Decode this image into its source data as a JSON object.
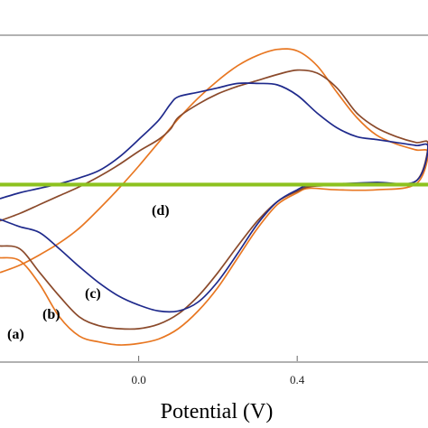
{
  "chart_data": {
    "type": "line",
    "title": "",
    "xlabel": "Potential (V)",
    "ylabel": "",
    "xlim": [
      -0.35,
      0.73
    ],
    "ylim": [
      -1.2,
      1.0
    ],
    "x_ticks": [
      0.0,
      0.4
    ],
    "x_tick_labels": [
      "0.0",
      "0.4"
    ],
    "grid": false,
    "legend": "none",
    "series": [
      {
        "label": "(a)",
        "color": "#E87722",
        "x": [
          -0.35,
          -0.3,
          -0.25,
          -0.2,
          -0.15,
          -0.1,
          -0.05,
          0.0,
          0.05,
          0.1,
          0.15,
          0.2,
          0.25,
          0.3,
          0.35,
          0.4,
          0.45,
          0.5,
          0.55,
          0.6,
          0.65,
          0.7,
          0.73,
          0.7,
          0.6,
          0.5,
          0.43,
          0.4,
          0.35,
          0.3,
          0.25,
          0.2,
          0.15,
          0.1,
          0.05,
          0.0,
          -0.05,
          -0.1,
          -0.15,
          -0.2,
          -0.25,
          -0.3,
          -0.35
        ],
        "y": [
          -0.6,
          -0.55,
          -0.48,
          -0.4,
          -0.3,
          -0.17,
          -0.03,
          0.12,
          0.28,
          0.44,
          0.58,
          0.7,
          0.8,
          0.87,
          0.91,
          0.9,
          0.8,
          0.62,
          0.45,
          0.33,
          0.27,
          0.23,
          0.21,
          0.0,
          -0.04,
          -0.04,
          -0.03,
          -0.06,
          -0.14,
          -0.3,
          -0.5,
          -0.7,
          -0.86,
          -0.98,
          -1.05,
          -1.08,
          -1.09,
          -1.07,
          -1.03,
          -0.9,
          -0.68,
          -0.52,
          -0.5
        ]
      },
      {
        "label": "(b)",
        "color": "#8B4A2B",
        "x": [
          -0.35,
          -0.3,
          -0.25,
          -0.2,
          -0.15,
          -0.1,
          -0.05,
          0.0,
          0.05,
          0.08,
          0.1,
          0.15,
          0.2,
          0.25,
          0.3,
          0.35,
          0.4,
          0.45,
          0.5,
          0.55,
          0.6,
          0.65,
          0.7,
          0.73,
          0.7,
          0.6,
          0.5,
          0.43,
          0.4,
          0.35,
          0.3,
          0.25,
          0.2,
          0.15,
          0.1,
          0.05,
          0.0,
          -0.05,
          -0.1,
          -0.15,
          -0.2,
          -0.25,
          -0.3,
          -0.35
        ],
        "y": [
          -0.25,
          -0.2,
          -0.14,
          -0.08,
          -0.02,
          0.05,
          0.13,
          0.22,
          0.3,
          0.37,
          0.45,
          0.54,
          0.61,
          0.66,
          0.7,
          0.74,
          0.77,
          0.75,
          0.65,
          0.48,
          0.38,
          0.32,
          0.28,
          0.27,
          0.02,
          -0.01,
          -0.01,
          -0.02,
          -0.05,
          -0.12,
          -0.25,
          -0.42,
          -0.6,
          -0.76,
          -0.88,
          -0.95,
          -0.98,
          -0.98,
          -0.96,
          -0.9,
          -0.76,
          -0.6,
          -0.44,
          -0.42
        ]
      },
      {
        "label": "(c)",
        "color": "#1F2A8C",
        "x": [
          -0.35,
          -0.3,
          -0.25,
          -0.2,
          -0.15,
          -0.1,
          -0.05,
          0.0,
          0.05,
          0.08,
          0.1,
          0.15,
          0.2,
          0.25,
          0.3,
          0.35,
          0.4,
          0.45,
          0.5,
          0.55,
          0.6,
          0.65,
          0.7,
          0.73,
          0.7,
          0.6,
          0.5,
          0.43,
          0.4,
          0.35,
          0.3,
          0.25,
          0.2,
          0.15,
          0.1,
          0.05,
          0.0,
          -0.05,
          -0.1,
          -0.15,
          -0.2,
          -0.25,
          -0.3,
          -0.35
        ],
        "y": [
          -0.1,
          -0.06,
          -0.03,
          0.0,
          0.04,
          0.09,
          0.18,
          0.3,
          0.43,
          0.54,
          0.59,
          0.62,
          0.65,
          0.68,
          0.68,
          0.67,
          0.6,
          0.48,
          0.38,
          0.32,
          0.3,
          0.28,
          0.26,
          0.25,
          0.02,
          0.01,
          0.0,
          -0.01,
          -0.04,
          -0.12,
          -0.27,
          -0.47,
          -0.66,
          -0.8,
          -0.86,
          -0.86,
          -0.82,
          -0.76,
          -0.67,
          -0.56,
          -0.44,
          -0.33,
          -0.29,
          -0.24
        ]
      },
      {
        "label": "(d)",
        "color": "#8DC21F",
        "x": [
          -0.35,
          0.73,
          0.73,
          -0.35
        ],
        "y": [
          0.0,
          0.0,
          -0.01,
          -0.01
        ]
      }
    ],
    "annotations": [
      "(a)",
      "(b)",
      "(c)",
      "(d)"
    ]
  }
}
